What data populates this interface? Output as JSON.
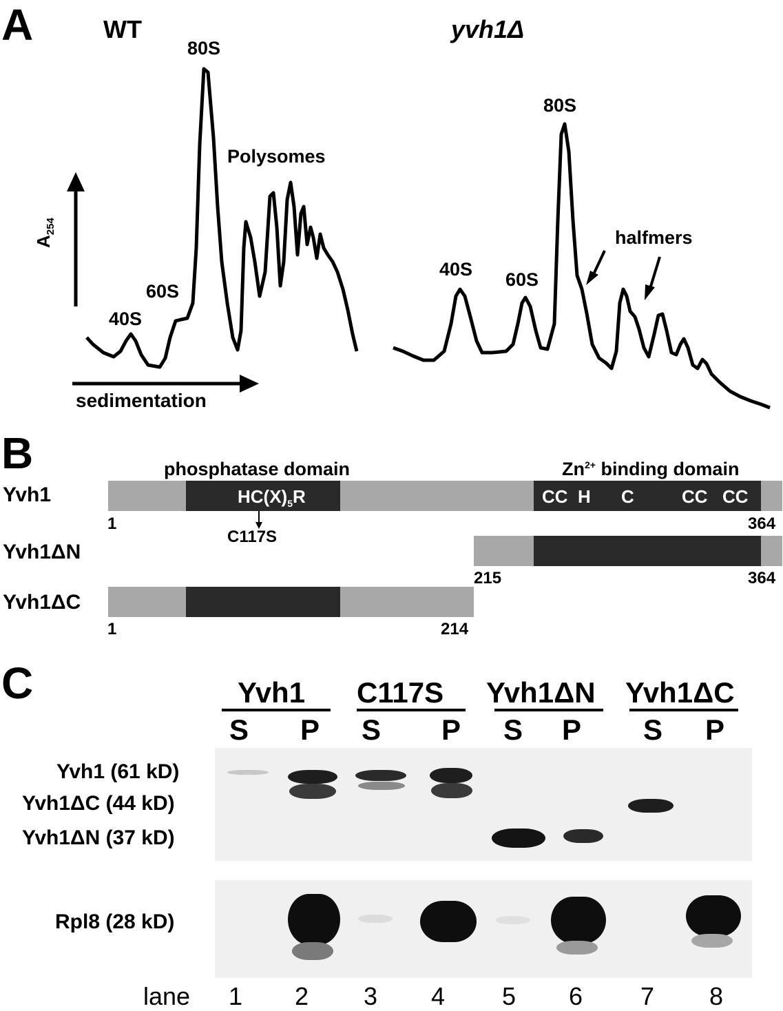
{
  "panel_a": {
    "letter": "A",
    "wt_label": "WT",
    "mut_label": "yvh1Δ",
    "y_axis_main": "A",
    "y_axis_sub": "254",
    "x_axis_label": "sedimentation",
    "wt_peaks": {
      "p40S": "40S",
      "p60S": "60S",
      "p80S": "80S",
      "polysomes": "Polysomes"
    },
    "mut_peaks": {
      "p40S": "40S",
      "p60S": "60S",
      "p80S": "80S",
      "halfmers": "halfmers"
    }
  },
  "panel_b": {
    "letter": "B",
    "phosphatase_label": "phosphatase domain",
    "zn_label_pre": "Zn",
    "zn_label_sup": "2+",
    "zn_label_post": " binding domain",
    "motif_pre": "HC(X)",
    "motif_sub": "5",
    "motif_post": "R",
    "zn_residues": [
      "CC",
      "H",
      "C",
      "CC",
      "CC"
    ],
    "mutation": "C117S",
    "constructs": [
      {
        "name": "Yvh1",
        "start": "1",
        "end": "364"
      },
      {
        "name": "Yvh1ΔN",
        "start": "215",
        "end": "364"
      },
      {
        "name": "Yvh1ΔC",
        "start": "1",
        "end": "214"
      }
    ]
  },
  "panel_c": {
    "letter": "C",
    "groups": [
      "Yvh1",
      "C117S",
      "Yvh1ΔN",
      "Yvh1ΔC"
    ],
    "fractions": [
      "S",
      "P",
      "S",
      "P",
      "S",
      "P",
      "S",
      "P"
    ],
    "blot_labels": [
      "Yvh1 (61 kD)",
      "Yvh1ΔC (44 kD)",
      "Yvh1ΔN (37 kD)"
    ],
    "loading_label": "Rpl8 (28 kD)",
    "lane_word": "lane",
    "lanes": [
      "1",
      "2",
      "3",
      "4",
      "5",
      "6",
      "7",
      "8"
    ]
  },
  "colors": {
    "domain_dark": "#2a2a2a",
    "protein_grey": "#a8a8a8",
    "gel_bg": "#f0f0f0"
  }
}
